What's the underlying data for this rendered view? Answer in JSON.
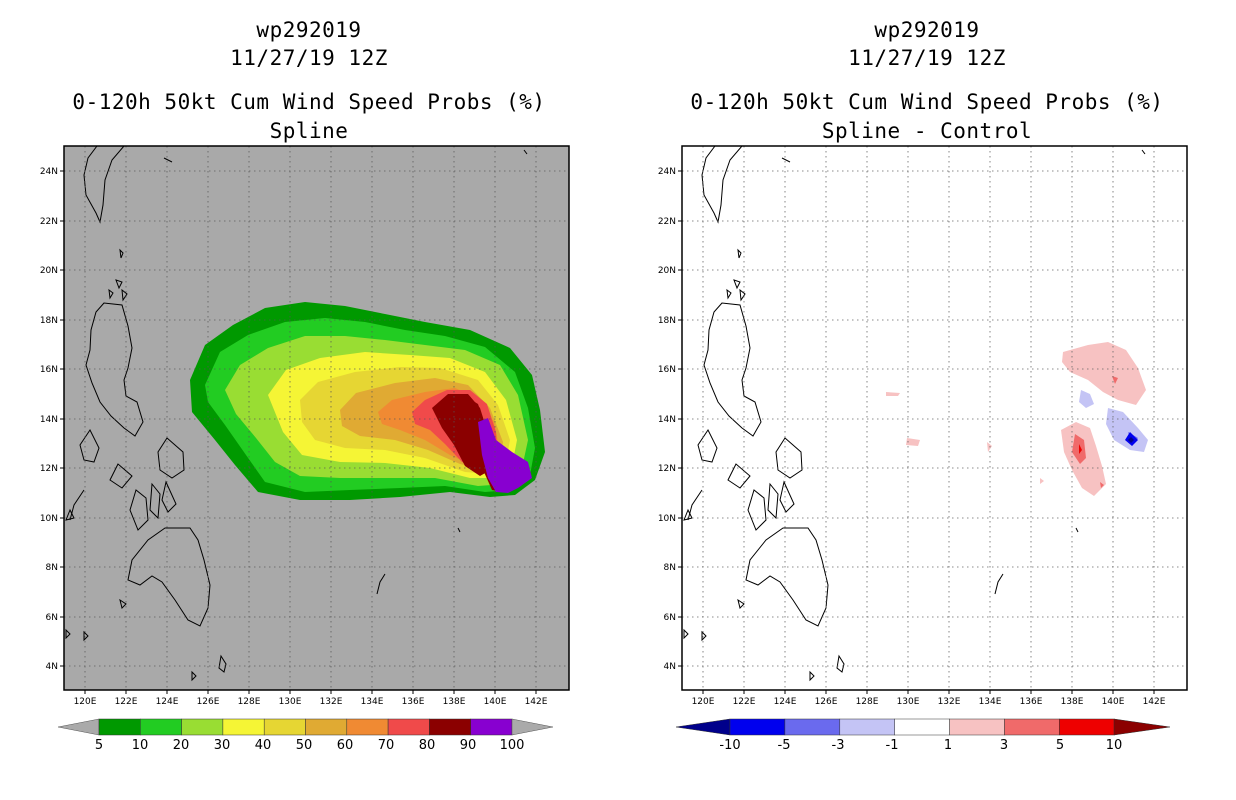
{
  "storm_id": "wp292019",
  "datetime": "11/27/19 12Z",
  "product": "0-120h 50kt Cum Wind Speed Probs (%)",
  "panels": [
    {
      "subtitle": "Spline",
      "colorbar_labels": [
        "5",
        "10",
        "20",
        "30",
        "40",
        "50",
        "60",
        "70",
        "80",
        "90",
        "100"
      ],
      "colors": [
        "#009900",
        "#22cc22",
        "#99dd33",
        "#f5f535",
        "#e6d633",
        "#e0aa33",
        "#f08a33",
        "#f04a4a",
        "#8b0000",
        "#8800d0"
      ]
    },
    {
      "subtitle": "Spline - Control",
      "colorbar_labels": [
        "-10",
        "-5",
        "-3",
        "-1",
        "1",
        "3",
        "5",
        "10"
      ],
      "colors": [
        "#00008b",
        "#0000ee",
        "#6a6aee",
        "#c4c4f5",
        "#ffffff",
        "#f7c2c2",
        "#f06a6a",
        "#ee0000",
        "#8b0000"
      ]
    }
  ],
  "lat_labels": [
    "24N",
    "22N",
    "20N",
    "18N",
    "16N",
    "14N",
    "12N",
    "10N",
    "8N",
    "6N",
    "4N"
  ],
  "lon_labels": [
    "120E",
    "122E",
    "124E",
    "126E",
    "128E",
    "130E",
    "132E",
    "134E",
    "136E",
    "138E",
    "140E",
    "142E"
  ],
  "chart_data": {
    "type": "map",
    "lat_range": [
      3,
      25
    ],
    "lon_range": [
      119,
      144
    ],
    "grid_step_deg": 2
  }
}
